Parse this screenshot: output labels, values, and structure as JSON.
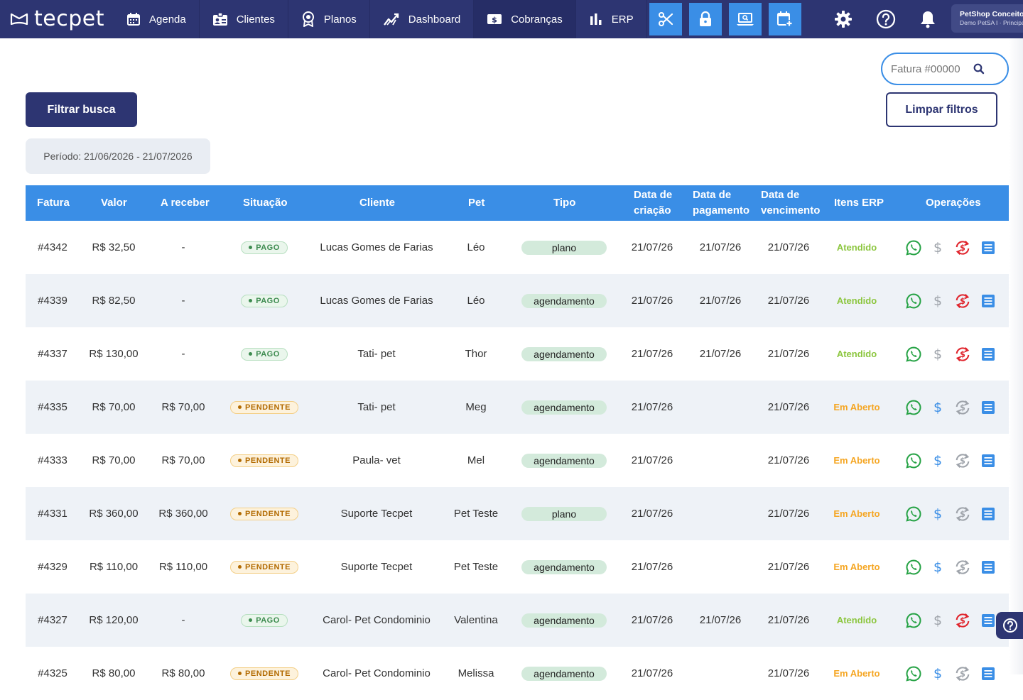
{
  "brand": {
    "name": "tecpet"
  },
  "nav": {
    "items": [
      {
        "key": "agenda",
        "label": "Agenda"
      },
      {
        "key": "clientes",
        "label": "Clientes"
      },
      {
        "key": "planos",
        "label": "Planos"
      },
      {
        "key": "dashboard",
        "label": "Dashboard"
      },
      {
        "key": "cobrancas",
        "label": "Cobranças"
      },
      {
        "key": "erp",
        "label": "ERP"
      }
    ],
    "tools": [
      "scissors-icon",
      "lock-icon",
      "laptop-search-icon",
      "calendar-plus-icon"
    ],
    "account": {
      "name": "PetShop Conceito",
      "sub": "Demo PetSA I · Principal"
    }
  },
  "filters": {
    "search_placeholder": "Fatura #00000",
    "filter_button": "Filtrar busca",
    "clear_button": "Limpar filtros",
    "period": "Período: 21/06/2026 - 21/07/2026"
  },
  "table": {
    "headers": {
      "fatura": "Fatura",
      "valor": "Valor",
      "a_receber": "A receber",
      "situacao": "Situação",
      "cliente": "Cliente",
      "pet": "Pet",
      "tipo": "Tipo",
      "criacao_1": "Data de",
      "criacao_2": "criação",
      "pagamento_1": "Data de",
      "pagamento_2": "pagamento",
      "vencimento_1": "Data de",
      "vencimento_2": "vencimento",
      "itens_erp": "Itens ERP",
      "operacoes": "Operações"
    },
    "rows": [
      {
        "fatura": "#4342",
        "valor": "R$ 32,50",
        "a_receber": "-",
        "situacao": "PAGO",
        "cliente": "Lucas Gomes de Farias",
        "pet": "Léo",
        "tipo": "plano",
        "criacao": "21/07/26",
        "pagamento": "21/07/26",
        "vencimento": "21/07/26",
        "erp": "Atendido"
      },
      {
        "fatura": "#4339",
        "valor": "R$ 82,50",
        "a_receber": "-",
        "situacao": "PAGO",
        "cliente": "Lucas Gomes de Farias",
        "pet": "Léo",
        "tipo": "agendamento",
        "criacao": "21/07/26",
        "pagamento": "21/07/26",
        "vencimento": "21/07/26",
        "erp": "Atendido"
      },
      {
        "fatura": "#4337",
        "valor": "R$ 130,00",
        "a_receber": "-",
        "situacao": "PAGO",
        "cliente": "Tati- pet",
        "pet": "Thor",
        "tipo": "agendamento",
        "criacao": "21/07/26",
        "pagamento": "21/07/26",
        "vencimento": "21/07/26",
        "erp": "Atendido"
      },
      {
        "fatura": "#4335",
        "valor": "R$ 70,00",
        "a_receber": "R$ 70,00",
        "situacao": "PENDENTE",
        "cliente": "Tati- pet",
        "pet": "Meg",
        "tipo": "agendamento",
        "criacao": "21/07/26",
        "pagamento": "",
        "vencimento": "21/07/26",
        "erp": "Em Aberto"
      },
      {
        "fatura": "#4333",
        "valor": "R$ 70,00",
        "a_receber": "R$ 70,00",
        "situacao": "PENDENTE",
        "cliente": "Paula- vet",
        "pet": "Mel",
        "tipo": "agendamento",
        "criacao": "21/07/26",
        "pagamento": "",
        "vencimento": "21/07/26",
        "erp": "Em Aberto"
      },
      {
        "fatura": "#4331",
        "valor": "R$ 360,00",
        "a_receber": "R$ 360,00",
        "situacao": "PENDENTE",
        "cliente": "Suporte Tecpet",
        "pet": "Pet Teste",
        "tipo": "plano",
        "criacao": "21/07/26",
        "pagamento": "",
        "vencimento": "21/07/26",
        "erp": "Em Aberto"
      },
      {
        "fatura": "#4329",
        "valor": "R$ 110,00",
        "a_receber": "R$ 110,00",
        "situacao": "PENDENTE",
        "cliente": "Suporte Tecpet",
        "pet": "Pet Teste",
        "tipo": "agendamento",
        "criacao": "21/07/26",
        "pagamento": "",
        "vencimento": "21/07/26",
        "erp": "Em Aberto"
      },
      {
        "fatura": "#4327",
        "valor": "R$ 120,00",
        "a_receber": "-",
        "situacao": "PAGO",
        "cliente": "Carol- Pet Condominio",
        "pet": "Valentina",
        "tipo": "agendamento",
        "criacao": "21/07/26",
        "pagamento": "21/07/26",
        "vencimento": "21/07/26",
        "erp": "Atendido"
      },
      {
        "fatura": "#4325",
        "valor": "R$ 80,00",
        "a_receber": "R$ 80,00",
        "situacao": "PENDENTE",
        "cliente": "Carol- Pet Condominio",
        "pet": "Melissa",
        "tipo": "agendamento",
        "criacao": "21/07/26",
        "pagamento": "",
        "vencimento": "21/07/26",
        "erp": "Em Aberto"
      }
    ]
  },
  "colors": {
    "nav": "#2d3572",
    "accent": "#3a8ee6",
    "paid": "#3d8b4f",
    "pending": "#b26a00",
    "whatsapp": "#25a244",
    "refund_active": "#e0242c"
  }
}
